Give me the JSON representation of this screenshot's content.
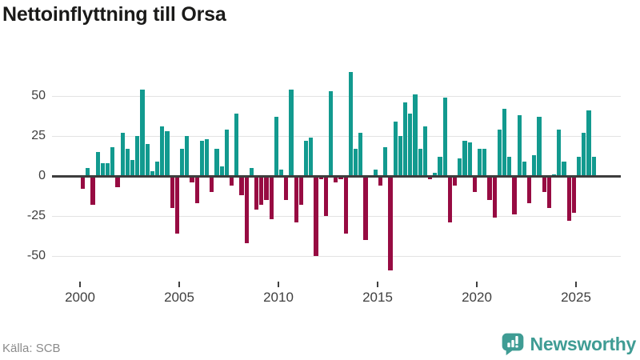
{
  "header": {
    "title": "Nettoinflyttning till Orsa"
  },
  "footer": {
    "source": "Källa: SCB",
    "logo_text": "Newsworthy"
  },
  "colors": {
    "positive": "#129a8f",
    "negative": "#970b42",
    "grid": "#e3e3e3",
    "zero_line": "#3d3d3d",
    "title": "#1a1a19",
    "axis_text": "#3f3f3f",
    "source_text": "#8b8b8b",
    "logo": "#3f9c94",
    "background": "#ffffff"
  },
  "chart_data": {
    "type": "bar",
    "title": "Nettoinflyttning till Orsa",
    "x_unit": "quarter",
    "start_year": 2000,
    "periods_per_year": 4,
    "x_start": "2000Q1",
    "x_end": "2025Q4",
    "x_tick_labels": [
      "2000",
      "2005",
      "2010",
      "2015",
      "2020",
      "2025"
    ],
    "y_ticks": [
      50,
      25,
      0,
      -25,
      -50
    ],
    "y_tick_labels": [
      "50",
      "25",
      "0",
      "-25",
      "-50"
    ],
    "ylim": [
      -63,
      67
    ],
    "grid": "horizontal",
    "legend": "none",
    "values": [
      -8,
      5,
      -18,
      15,
      8,
      8,
      18,
      -7,
      27,
      17,
      10,
      25,
      54,
      20,
      3,
      9,
      31,
      28,
      -20,
      -36,
      17,
      25,
      -4,
      -17,
      22,
      23,
      -10,
      17,
      6,
      29,
      -6,
      39,
      -12,
      -42,
      5,
      -21,
      -18,
      -15,
      -27,
      37,
      4,
      -15,
      54,
      -29,
      -18,
      22,
      24,
      -50,
      -2,
      -25,
      53,
      -4,
      -2,
      -36,
      65,
      17,
      27,
      -40,
      -1,
      4,
      -6,
      18,
      -59,
      34,
      25,
      46,
      39,
      51,
      17,
      31,
      -2,
      2,
      12,
      49,
      -29,
      -6,
      11,
      22,
      21,
      -10,
      17,
      17,
      -15,
      -26,
      29,
      42,
      12,
      -24,
      38,
      9,
      -17,
      13,
      37,
      -10,
      -20,
      1,
      29,
      9,
      -28,
      -23,
      12,
      27,
      41,
      12
    ]
  }
}
